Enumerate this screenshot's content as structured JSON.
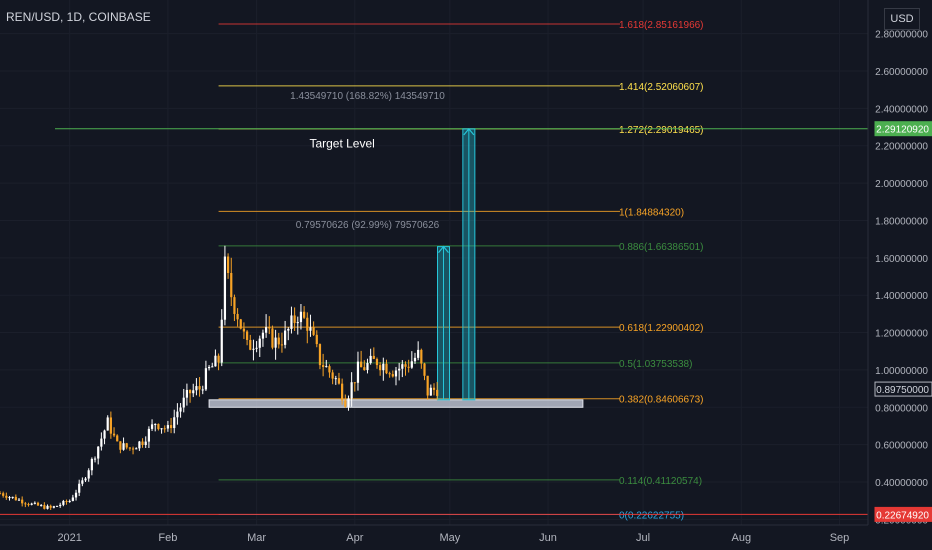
{
  "symbol_title": "REN/USD, 1D, COINBASE",
  "currency_label": "USD",
  "chart_data": {
    "type": "candlestick",
    "title": "REN/USD, 1D, COINBASE",
    "ylim": [
      0.17,
      2.98
    ],
    "y_ticks": [
      "2.80000000",
      "2.60000000",
      "2.40000000",
      "2.20000000",
      "2.00000000",
      "1.80000000",
      "1.60000000",
      "1.40000000",
      "1.20000000",
      "1.00000000",
      "0.80000000",
      "0.60000000",
      "0.40000000",
      "0.20000000"
    ],
    "y_tick_values": [
      2.8,
      2.6,
      2.4,
      2.2,
      2.0,
      1.8,
      1.6,
      1.4,
      1.2,
      1.0,
      0.8,
      0.6,
      0.4,
      0.2
    ],
    "x_ticks": [
      {
        "label": "2021",
        "date": "2021-01-01"
      },
      {
        "label": "Feb",
        "date": "2021-02-01"
      },
      {
        "label": "Mar",
        "date": "2021-03-01"
      },
      {
        "label": "Apr",
        "date": "2021-04-01"
      },
      {
        "label": "May",
        "date": "2021-05-01"
      },
      {
        "label": "Jun",
        "date": "2021-06-01"
      },
      {
        "label": "Jul",
        "date": "2021-07-01"
      },
      {
        "label": "Aug",
        "date": "2021-08-01"
      },
      {
        "label": "Sep",
        "date": "2021-09-01"
      }
    ],
    "xlim": [
      "2020-12-10",
      "2021-09-10"
    ],
    "close_anchors": [
      [
        "2020-12-10",
        0.34
      ],
      [
        "2020-12-15",
        0.31
      ],
      [
        "2020-12-20",
        0.28
      ],
      [
        "2020-12-26",
        0.26
      ],
      [
        "2021-01-01",
        0.3
      ],
      [
        "2021-01-05",
        0.4
      ],
      [
        "2021-01-09",
        0.55
      ],
      [
        "2021-01-13",
        0.72
      ],
      [
        "2021-01-16",
        0.6
      ],
      [
        "2021-01-20",
        0.58
      ],
      [
        "2021-01-24",
        0.62
      ],
      [
        "2021-01-28",
        0.72
      ],
      [
        "2021-02-01",
        0.68
      ],
      [
        "2021-02-04",
        0.78
      ],
      [
        "2021-02-08",
        0.88
      ],
      [
        "2021-02-11",
        0.9
      ],
      [
        "2021-02-14",
        1.0
      ],
      [
        "2021-02-17",
        1.05
      ],
      [
        "2021-02-19",
        1.55
      ],
      [
        "2021-02-21",
        1.4
      ],
      [
        "2021-02-23",
        1.3
      ],
      [
        "2021-02-26",
        1.12
      ],
      [
        "2021-03-03",
        1.2
      ],
      [
        "2021-03-07",
        1.15
      ],
      [
        "2021-03-10",
        1.18
      ],
      [
        "2021-03-14",
        1.3
      ],
      [
        "2021-03-17",
        1.25
      ],
      [
        "2021-03-21",
        1.05
      ],
      [
        "2021-03-26",
        0.95
      ],
      [
        "2021-03-29",
        0.84
      ],
      [
        "2021-04-02",
        1.0
      ],
      [
        "2021-04-08",
        1.05
      ],
      [
        "2021-04-13",
        1.0
      ],
      [
        "2021-04-17",
        1.02
      ],
      [
        "2021-04-21",
        1.08
      ],
      [
        "2021-04-24",
        0.88
      ],
      [
        "2021-04-27",
        0.9
      ]
    ],
    "price_label": "0.89750000",
    "last_price": 0.8975,
    "fib_levels": [
      {
        "label": "1.618(2.85161966)",
        "value": 2.85161966,
        "color": "#e53935"
      },
      {
        "label": "1.414(2.52060607)",
        "value": 2.52060607,
        "color": "#ffe14d"
      },
      {
        "label": "1.272(2.29019465)",
        "value": 2.29019465,
        "color": "#ffe14d"
      },
      {
        "label": "1(1.84884320)",
        "value": 1.8488432,
        "color": "#f7a326"
      },
      {
        "label": "0.886(1.66386501)",
        "value": 1.66386501,
        "color": "#3b8c3f"
      },
      {
        "label": "0.618(1.22900402)",
        "value": 1.22900402,
        "color": "#f7a326"
      },
      {
        "label": "0.5(1.03753538)",
        "value": 1.03753538,
        "color": "#3b8c3f"
      },
      {
        "label": "0.382(0.84606673)",
        "value": 0.84606673,
        "color": "#f7a326"
      },
      {
        "label": "0.114(0.41120574)",
        "value": 0.41120574,
        "color": "#3b8c3f"
      },
      {
        "label": "0(0.22622755)",
        "value": 0.22622755,
        "color": "#2ea6e0"
      }
    ],
    "fib_range_dates": [
      "2021-02-17",
      "2021-04-28"
    ],
    "target_line": {
      "value": 2.2912092,
      "label": "2.29120920",
      "color": "#4caf50"
    },
    "red_line": {
      "value": 0.2267492,
      "label": "0.22674920",
      "color": "#e53935"
    },
    "annotations": [
      {
        "text": "Target Level",
        "date": "2021-03-28",
        "value": 2.19
      },
      {
        "text": "1.43549710 (168.82%) 143549710",
        "date": "2021-04-05",
        "value": 2.45
      },
      {
        "text": "0.79570626 (92.99%) 79570626",
        "date": "2021-04-05",
        "value": 1.76
      }
    ],
    "support_zone": {
      "start": "2021-02-14",
      "end": "2021-06-12",
      "low": 0.8,
      "high": 0.84
    },
    "projections": [
      {
        "date": "2021-04-29",
        "from": 0.84,
        "to": 1.66
      },
      {
        "date": "2021-05-07",
        "from": 0.84,
        "to": 2.29
      }
    ]
  }
}
